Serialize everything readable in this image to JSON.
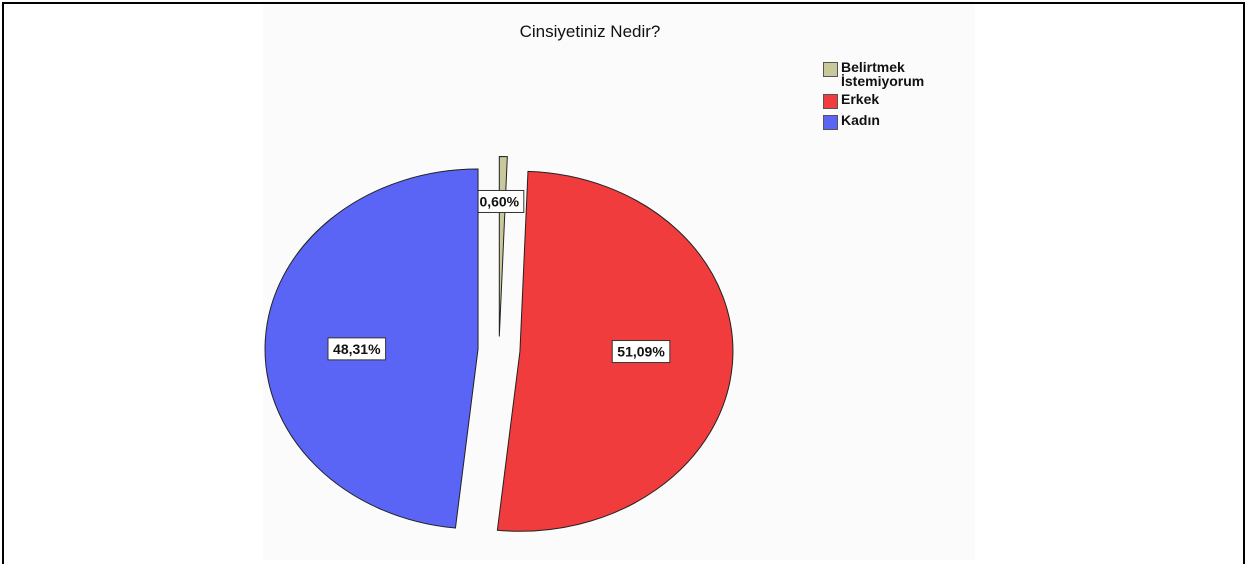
{
  "chart_data": {
    "type": "pie",
    "title": "Cinsiyetiniz Nedir?",
    "slices": [
      {
        "name": "Belirtmek\nİstemiyorum",
        "value": 0.6,
        "label": "0,60%",
        "color": "#c8c89a"
      },
      {
        "name": "Erkek",
        "value": 51.09,
        "label": "51,09%",
        "color": "#f03c3c"
      },
      {
        "name": "Kadın",
        "value": 48.31,
        "label": "48,31%",
        "color": "#5a64f5"
      }
    ],
    "legend_position": "top-right"
  }
}
